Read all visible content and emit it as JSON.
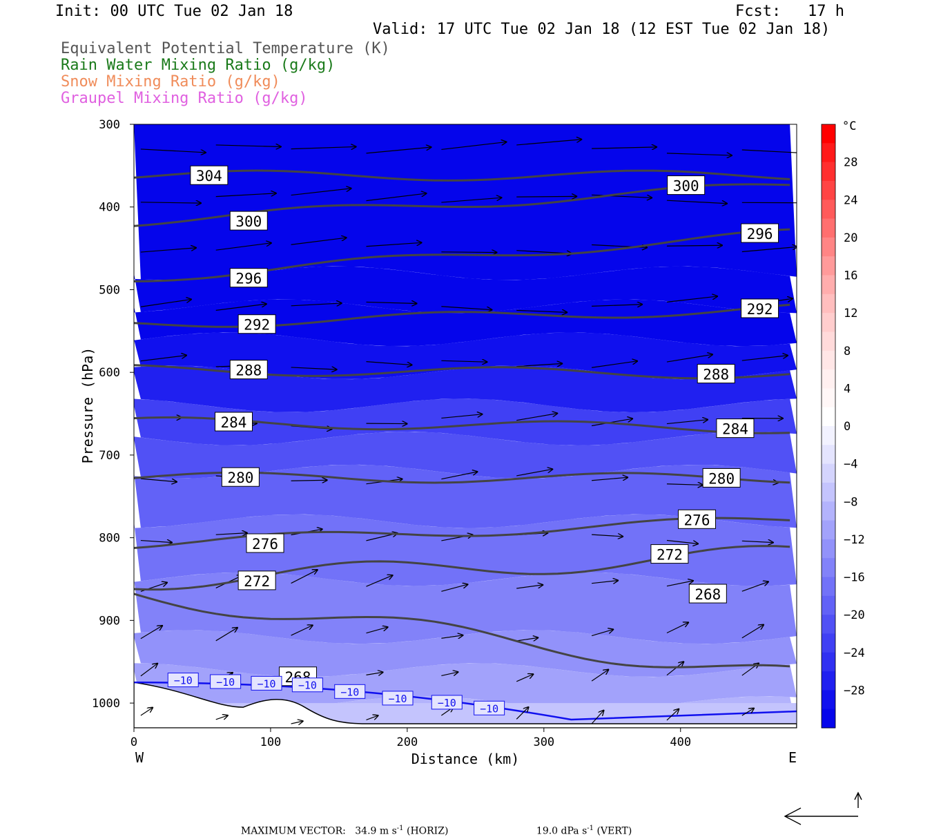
{
  "header": {
    "init": "Init: 00 UTC Tue 02 Jan 18",
    "fcst_label": "Fcst:",
    "fcst_value": "17 h",
    "valid": "Valid: 17 UTC Tue 02 Jan 18 (12 EST Tue 02 Jan 18)"
  },
  "legend": [
    {
      "text": "Equivalent Potential Temperature (K)",
      "color": "#555555"
    },
    {
      "text": "Rain Water Mixing Ratio (g/kg)",
      "color": "#1a7a1a"
    },
    {
      "text": "Snow Mixing Ratio (g/kg)",
      "color": "#f08c5a"
    },
    {
      "text": "Graupel Mixing Ratio (g/kg)",
      "color": "#e060e0"
    }
  ],
  "footer": {
    "max_label": "MAXIMUM VECTOR:",
    "horiz_value": "34.9 m s",
    "horiz_suffix": " (HORIZ)",
    "vert_value": "19.0 dPa s",
    "vert_suffix": " (VERT)",
    "exponent": "-1"
  },
  "chart_data": {
    "type": "cross-section",
    "xlabel": "Distance (km)",
    "ylabel": "Pressure (hPa)",
    "xlim": [
      0,
      485
    ],
    "ylim": [
      1030,
      300
    ],
    "x_ticks": [
      0,
      100,
      200,
      300,
      400
    ],
    "y_ticks": [
      300,
      400,
      500,
      600,
      700,
      800,
      900,
      1000
    ],
    "x_end_labels": {
      "left": "W",
      "right": "E"
    },
    "colorbar": {
      "unit": "°C",
      "tick_labels": [
        "28",
        "24",
        "20",
        "16",
        "12",
        "8",
        "4",
        "0",
        "−4",
        "−8",
        "−12",
        "−16",
        "−20",
        "−24",
        "−28"
      ],
      "tick_values": [
        28,
        24,
        20,
        16,
        12,
        8,
        4,
        0,
        -4,
        -8,
        -12,
        -16,
        -20,
        -24,
        -28
      ],
      "levels": [
        32,
        30,
        28,
        26,
        24,
        22,
        20,
        18,
        16,
        14,
        12,
        10,
        8,
        6,
        4,
        2,
        0,
        -2,
        -4,
        -6,
        -8,
        -10,
        -12,
        -14,
        -16,
        -18,
        -20,
        -22,
        -24,
        -26,
        -28,
        -30,
        -32
      ],
      "warm_colors": [
        "#ff0000",
        "#ff1a1a",
        "#ff2f2f",
        "#ff4444",
        "#ff5a5a",
        "#ff6f6f",
        "#ff8585",
        "#ff9a9a",
        "#ffadad",
        "#ffbebe",
        "#ffcdcd",
        "#ffdada",
        "#ffe6e6",
        "#fff0f0",
        "#fff7f7",
        "#ffffff"
      ],
      "cold_colors": [
        "#ffffff",
        "#f2f2ff",
        "#e4e4fe",
        "#d4d4fd",
        "#c4c4fd",
        "#b3b3fc",
        "#a2a2fb",
        "#9292fa",
        "#8282f9",
        "#7272f8",
        "#6262f7",
        "#5151f5",
        "#4040f4",
        "#3030f2",
        "#2020f0",
        "#1010ee",
        "#0505eb"
      ]
    },
    "temperature_bands": [
      {
        "p": 300,
        "t": -32
      },
      {
        "p": 480,
        "t": -32
      },
      {
        "p": 520,
        "t": -30
      },
      {
        "p": 560,
        "t": -28
      },
      {
        "p": 600,
        "t": -25
      },
      {
        "p": 640,
        "t": -22
      },
      {
        "p": 680,
        "t": -20
      },
      {
        "p": 720,
        "t": -18
      },
      {
        "p": 780,
        "t": -16
      },
      {
        "p": 850,
        "t": -14
      },
      {
        "p": 920,
        "t": -12
      },
      {
        "p": 960,
        "t": -10
      },
      {
        "p": 1000,
        "t": -8
      },
      {
        "p": 1030,
        "t": -6
      }
    ],
    "theta_e_contours": [
      {
        "value": 268,
        "labels": [
          [
            420,
            868
          ],
          [
            120,
            968
          ]
        ]
      },
      {
        "value": 272,
        "labels": [
          [
            90,
            852
          ],
          [
            392,
            820
          ]
        ]
      },
      {
        "value": 276,
        "labels": [
          [
            96,
            807
          ],
          [
            412,
            778
          ]
        ]
      },
      {
        "value": 280,
        "labels": [
          [
            78,
            727
          ],
          [
            430,
            728
          ]
        ]
      },
      {
        "value": 284,
        "labels": [
          [
            73,
            660
          ],
          [
            440,
            668
          ]
        ]
      },
      {
        "value": 288,
        "labels": [
          [
            84,
            597
          ],
          [
            426,
            602
          ]
        ]
      },
      {
        "value": 292,
        "labels": [
          [
            90,
            542
          ],
          [
            458,
            523
          ]
        ]
      },
      {
        "value": 296,
        "labels": [
          [
            84,
            486
          ],
          [
            458,
            432
          ]
        ]
      },
      {
        "value": 300,
        "labels": [
          [
            84,
            417
          ],
          [
            404,
            374
          ]
        ]
      },
      {
        "value": 304,
        "labels": [
          [
            55,
            362
          ]
        ]
      }
    ],
    "temp_minus10_labels": [
      "−10",
      "−10",
      "−10",
      "−10",
      "−10",
      "−10",
      "−10",
      "−10",
      "−10"
    ],
    "max_vector": {
      "horiz": 34.9,
      "horiz_unit": "m s-1",
      "vert": 19.0,
      "vert_unit": "dPa s-1"
    }
  }
}
